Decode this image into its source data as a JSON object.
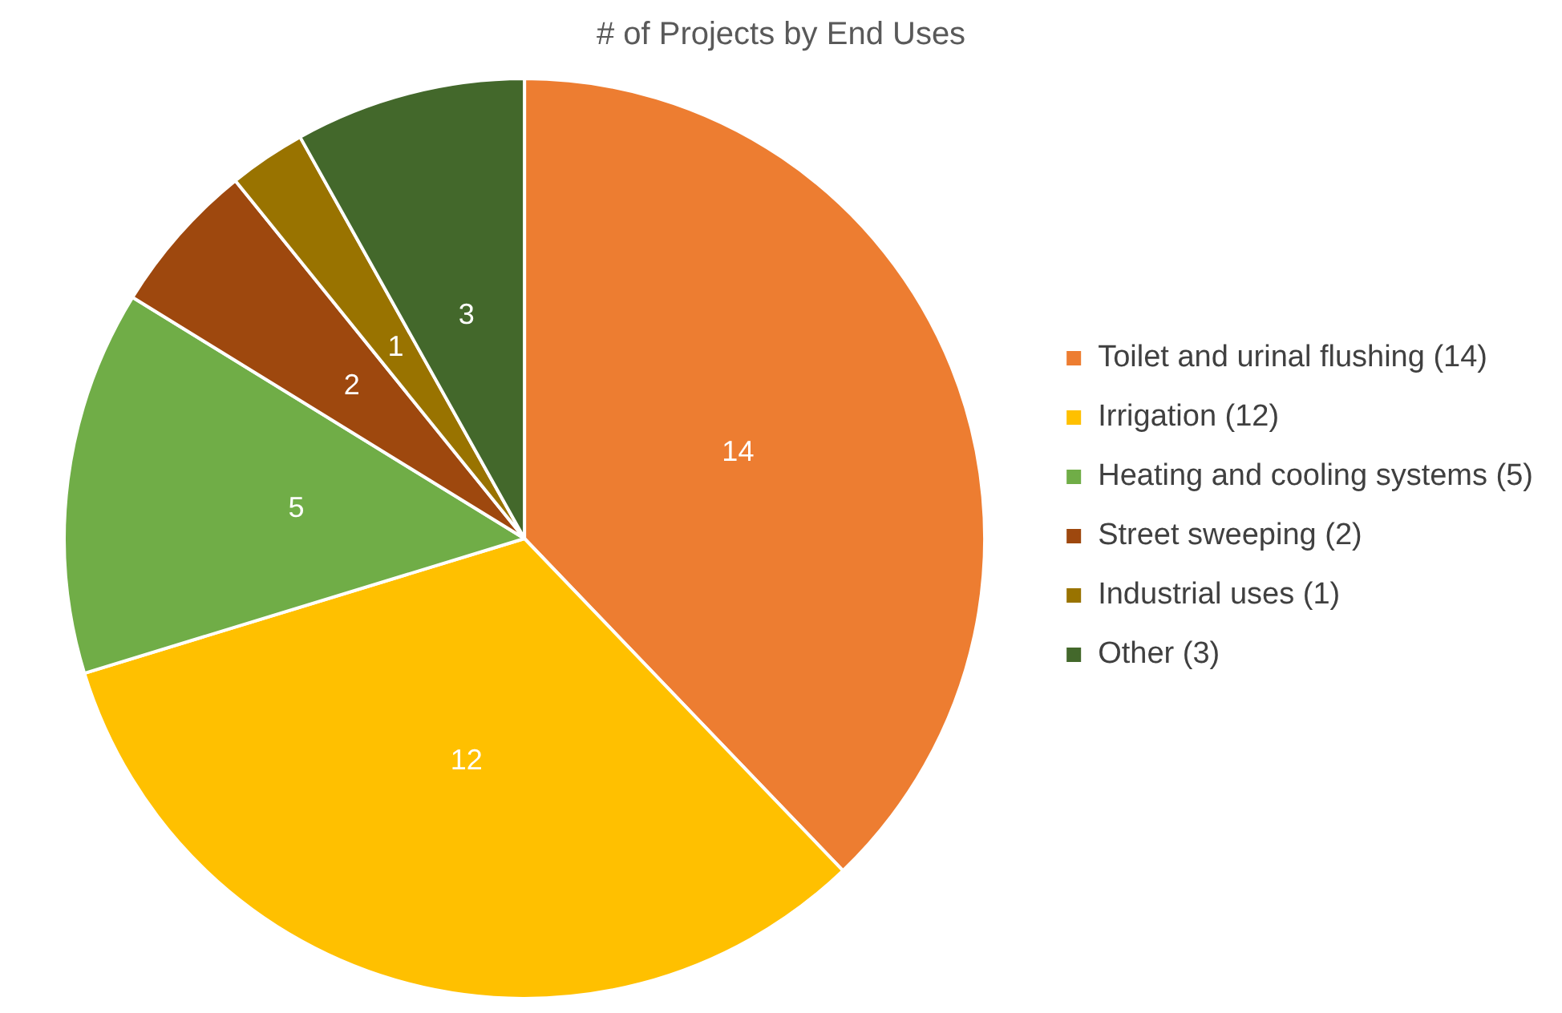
{
  "chart_data": {
    "type": "pie",
    "title": "# of Projects by End Uses",
    "categories": [
      "Toilet and urinal flushing (14)",
      "Irrigation (12)",
      "Heating and cooling systems (5)",
      "Street sweeping (2)",
      "Industrial uses (1)",
      "Other (3)"
    ],
    "values": [
      14,
      12,
      5,
      2,
      1,
      3
    ],
    "colors": [
      "#ed7d31",
      "#ffc000",
      "#70ad47",
      "#9e480e",
      "#997300",
      "#43682b"
    ],
    "data_labels": true,
    "legend": "right"
  }
}
